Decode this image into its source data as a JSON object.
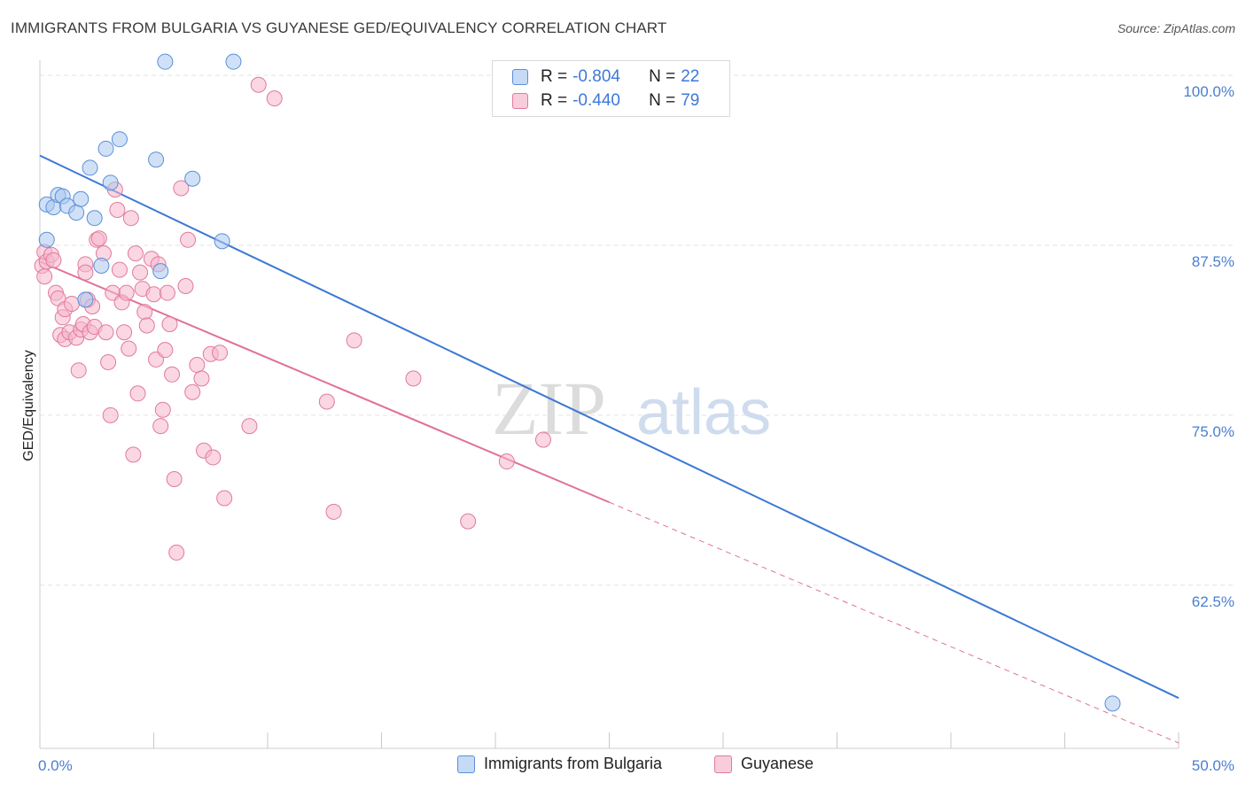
{
  "title": "IMMIGRANTS FROM BULGARIA VS GUYANESE GED/EQUIVALENCY CORRELATION CHART",
  "source": "Source: ZipAtlas.com",
  "watermark": {
    "zip": "ZIP",
    "atlas": "atlas"
  },
  "legend": {
    "series1": {
      "r_label": "R =",
      "r_value": "-0.804",
      "n_label": "N =",
      "n_value": "22"
    },
    "series2": {
      "r_label": "R =",
      "r_value": "-0.440",
      "n_label": "N =",
      "n_value": "79"
    }
  },
  "colors": {
    "blue_fill": "#a9c8f0",
    "blue_stroke": "#5b8fd6",
    "blue_line": "#3a78d4",
    "pink_fill": "#f6b6cb",
    "pink_stroke": "#e07a9d",
    "pink_line": "#e0709a",
    "tick_text": "#4a7fd0",
    "grid": "#e3e3e3"
  },
  "chart_data": {
    "type": "scatter",
    "title": "IMMIGRANTS FROM BULGARIA VS GUYANESE GED/EQUIVALENCY CORRELATION CHART",
    "xlabel": "",
    "ylabel": "GED/Equivalency",
    "xlim": [
      0,
      50
    ],
    "ylim": [
      50.5,
      101.5
    ],
    "x_tick_labels": [
      "0.0%",
      "50.0%"
    ],
    "y_ticks": [
      62.5,
      75.0,
      87.5,
      100.0
    ],
    "y_tick_labels": [
      "62.5%",
      "75.0%",
      "87.5%",
      "100.0%"
    ],
    "grid": true,
    "legend_position": "bottom",
    "series": [
      {
        "name": "Immigrants from Bulgaria",
        "color": "#a9c8f0",
        "trend": {
          "x": [
            0,
            50
          ],
          "y": [
            94.1,
            54.2
          ]
        },
        "points": [
          [
            0.3,
            87.9
          ],
          [
            0.3,
            90.5
          ],
          [
            0.6,
            90.3
          ],
          [
            0.8,
            91.2
          ],
          [
            1.0,
            91.1
          ],
          [
            1.2,
            90.4
          ],
          [
            1.6,
            89.9
          ],
          [
            1.8,
            90.9
          ],
          [
            2.0,
            83.5
          ],
          [
            2.2,
            93.2
          ],
          [
            2.4,
            89.5
          ],
          [
            2.7,
            86.0
          ],
          [
            2.9,
            94.6
          ],
          [
            3.1,
            92.1
          ],
          [
            3.5,
            95.3
          ],
          [
            5.1,
            93.8
          ],
          [
            5.3,
            85.6
          ],
          [
            5.5,
            101.0
          ],
          [
            6.7,
            92.4
          ],
          [
            8.0,
            87.8
          ],
          [
            8.5,
            101.0
          ],
          [
            47.1,
            53.8
          ]
        ]
      },
      {
        "name": "Guyanese",
        "color": "#f6b6cb",
        "trend": {
          "x": [
            0,
            50
          ],
          "y": [
            86.3,
            50.9
          ],
          "solid_until_x": 25
        },
        "points": [
          [
            0.1,
            86.0
          ],
          [
            0.2,
            85.2
          ],
          [
            0.2,
            87.0
          ],
          [
            0.3,
            86.3
          ],
          [
            0.5,
            86.8
          ],
          [
            0.6,
            86.4
          ],
          [
            0.7,
            84.0
          ],
          [
            0.8,
            83.6
          ],
          [
            0.9,
            80.9
          ],
          [
            1.0,
            82.2
          ],
          [
            1.1,
            82.8
          ],
          [
            1.1,
            80.6
          ],
          [
            1.3,
            81.1
          ],
          [
            1.4,
            83.2
          ],
          [
            1.6,
            80.7
          ],
          [
            1.7,
            78.3
          ],
          [
            1.8,
            81.3
          ],
          [
            1.9,
            81.7
          ],
          [
            2.0,
            86.1
          ],
          [
            2.0,
            85.5
          ],
          [
            2.1,
            83.5
          ],
          [
            2.2,
            81.1
          ],
          [
            2.3,
            83.0
          ],
          [
            2.4,
            81.5
          ],
          [
            2.5,
            87.9
          ],
          [
            2.6,
            88.0
          ],
          [
            2.8,
            86.9
          ],
          [
            2.9,
            81.1
          ],
          [
            3.0,
            78.9
          ],
          [
            3.1,
            75.0
          ],
          [
            3.2,
            84.0
          ],
          [
            3.3,
            91.6
          ],
          [
            3.4,
            90.1
          ],
          [
            3.5,
            85.7
          ],
          [
            3.6,
            83.3
          ],
          [
            3.7,
            81.1
          ],
          [
            3.8,
            84.0
          ],
          [
            3.9,
            79.9
          ],
          [
            4.0,
            89.5
          ],
          [
            4.1,
            72.1
          ],
          [
            4.2,
            86.9
          ],
          [
            4.3,
            76.6
          ],
          [
            4.4,
            85.5
          ],
          [
            4.5,
            84.3
          ],
          [
            4.6,
            82.6
          ],
          [
            4.7,
            81.6
          ],
          [
            4.9,
            86.5
          ],
          [
            5.0,
            83.9
          ],
          [
            5.1,
            79.1
          ],
          [
            5.2,
            86.1
          ],
          [
            5.3,
            74.2
          ],
          [
            5.4,
            75.4
          ],
          [
            5.5,
            79.8
          ],
          [
            5.6,
            84.0
          ],
          [
            5.7,
            81.7
          ],
          [
            5.8,
            78.0
          ],
          [
            5.9,
            70.3
          ],
          [
            6.0,
            64.9
          ],
          [
            6.2,
            91.7
          ],
          [
            6.4,
            84.5
          ],
          [
            6.5,
            87.9
          ],
          [
            6.7,
            76.7
          ],
          [
            6.9,
            78.7
          ],
          [
            7.1,
            77.7
          ],
          [
            7.2,
            72.4
          ],
          [
            7.5,
            79.5
          ],
          [
            7.6,
            71.9
          ],
          [
            7.9,
            79.6
          ],
          [
            8.1,
            68.9
          ],
          [
            9.2,
            74.2
          ],
          [
            9.6,
            99.3
          ],
          [
            10.3,
            98.3
          ],
          [
            12.6,
            76.0
          ],
          [
            12.9,
            67.9
          ],
          [
            13.8,
            80.5
          ],
          [
            16.4,
            77.7
          ],
          [
            18.8,
            67.2
          ],
          [
            20.5,
            71.6
          ],
          [
            22.1,
            73.2
          ]
        ]
      }
    ]
  },
  "bottom_legend": {
    "series1_label": "Immigrants from Bulgaria",
    "series2_label": "Guyanese"
  }
}
